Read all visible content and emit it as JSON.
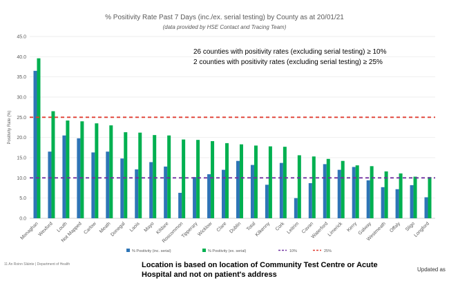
{
  "chart_data": {
    "type": "bar",
    "title": "% Positivity Rate Past 7 Days (inc./ex. serial testing) by County as at 20/01/21",
    "subtitle": "(data provided by HSE Contact and Tracing Team)",
    "xlabel": "",
    "ylabel": "Positivity Rate (%)",
    "ylim": [
      0,
      45
    ],
    "yticks": [
      "0.0",
      "5.0",
      "10.0",
      "15.0",
      "20.0",
      "25.0",
      "30.0",
      "35.0",
      "40.0",
      "45.0"
    ],
    "categories": [
      "Monaghan",
      "Wexford",
      "Louth",
      "Not Mapped",
      "Carlow",
      "Meath",
      "Donegal",
      "Laois",
      "Mayo",
      "Kildare",
      "Roscommon",
      "Tipperary",
      "Wicklow",
      "Clare",
      "Dublin",
      "Total",
      "Kilkenny",
      "Cork",
      "Leitrim",
      "Cavan",
      "Waterford",
      "Limerick",
      "Kerry",
      "Galway",
      "Westmeath",
      "Offaly",
      "Sligo",
      "Longford"
    ],
    "series": [
      {
        "name": "% Positivity (inc. serial)",
        "color": "#2e75b6",
        "values": [
          36.5,
          16.5,
          20.5,
          19.8,
          16.3,
          16.5,
          14.8,
          12.1,
          13.9,
          12.8,
          6.3,
          10.2,
          10.9,
          12.0,
          14.2,
          13.2,
          8.3,
          13.7,
          5.0,
          8.7,
          13.4,
          12.0,
          12.7,
          9.4,
          7.7,
          7.2,
          8.2,
          5.2
        ]
      },
      {
        "name": "% Positivity (ex. serial)",
        "color": "#00b050",
        "values": [
          39.6,
          26.5,
          24.2,
          24.0,
          23.5,
          23.0,
          21.3,
          21.2,
          20.6,
          20.5,
          19.5,
          19.4,
          19.1,
          18.6,
          18.3,
          18.0,
          17.8,
          17.7,
          15.6,
          15.3,
          14.7,
          14.2,
          13.1,
          12.9,
          11.6,
          11.1,
          10.3,
          10.2
        ]
      }
    ],
    "reference_lines": [
      {
        "name": "10%",
        "value": 10,
        "color": "#7030a0"
      },
      {
        "name": "25%",
        "value": 25,
        "color": "#e03c31"
      }
    ],
    "legend_position": "bottom"
  },
  "annotations": [
    "26 counties with positivity rates (excluding serial testing) ≥ 10%",
    "2 counties with positivity rates (excluding serial testing) ≥ 25%"
  ],
  "footer": {
    "left": "11  An Roinn Sláinte | Department of Health",
    "note": "Location is based on location of Community Test Centre or Acute Hospital and not on patient's address",
    "right": "Updated as"
  }
}
